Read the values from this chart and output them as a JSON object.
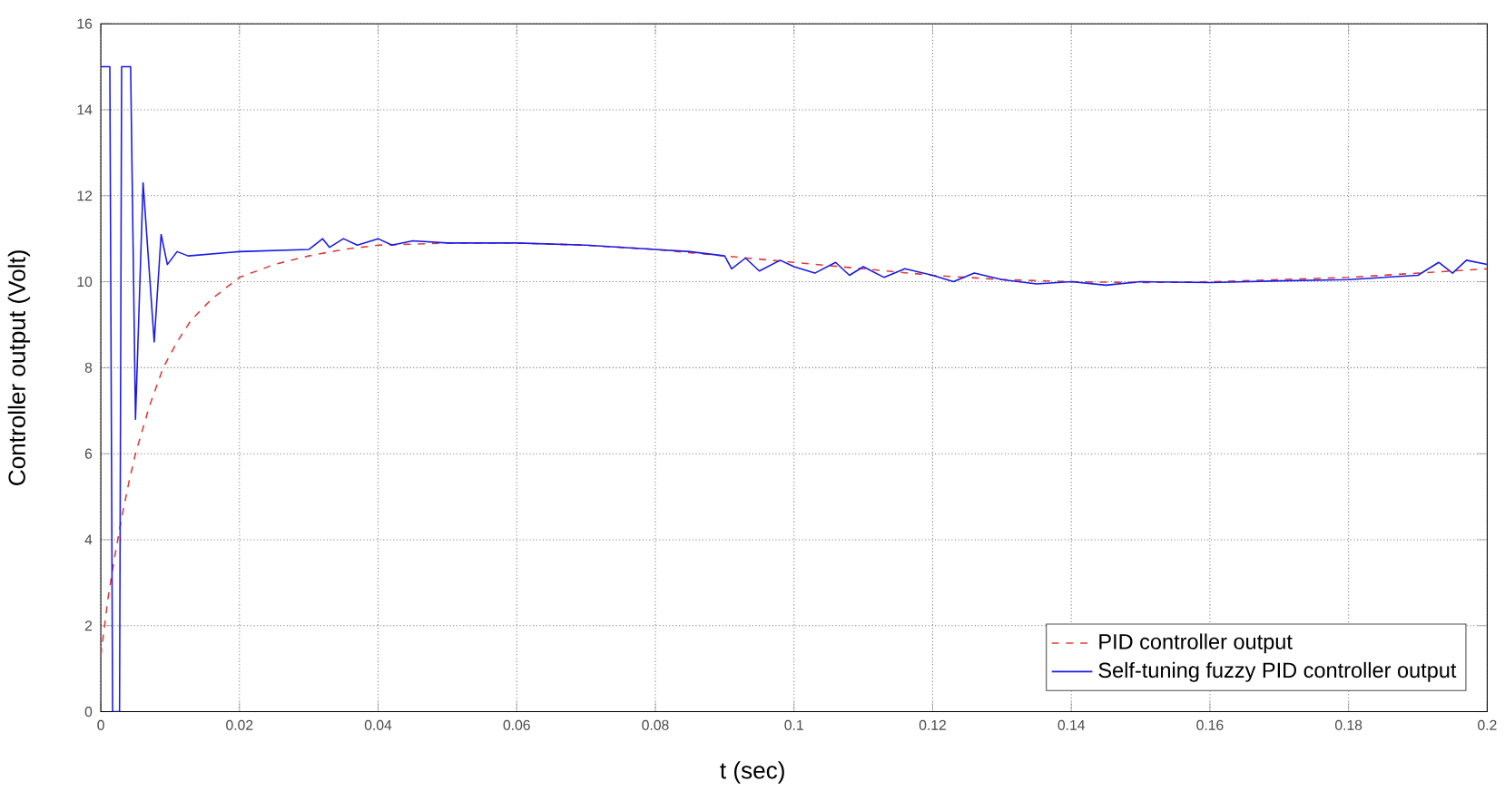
{
  "chart_data": {
    "type": "line",
    "xlabel": "t (sec)",
    "ylabel": "Controller output (Volt)",
    "xlim": [
      0,
      0.2
    ],
    "ylim": [
      0,
      16
    ],
    "xticks": [
      0,
      0.02,
      0.04,
      0.06,
      0.08,
      0.1,
      0.12,
      0.14,
      0.16,
      0.18,
      0.2
    ],
    "yticks": [
      0,
      2,
      4,
      6,
      8,
      10,
      12,
      14,
      16
    ],
    "grid": true,
    "legend": "bottom right",
    "series": [
      {
        "name": "PID controller output",
        "color": "#e03a3a",
        "line_style": "dashed",
        "x": [
          0,
          0.001,
          0.002,
          0.003,
          0.004,
          0.005,
          0.007,
          0.009,
          0.011,
          0.013,
          0.016,
          0.02,
          0.025,
          0.03,
          0.035,
          0.04,
          0.05,
          0.06,
          0.07,
          0.08,
          0.09,
          0.1,
          0.11,
          0.12,
          0.13,
          0.14,
          0.15,
          0.16,
          0.17,
          0.18,
          0.19,
          0.2
        ],
        "values": [
          1.3,
          2.6,
          3.6,
          4.5,
          5.3,
          6.0,
          7.1,
          8.0,
          8.6,
          9.1,
          9.6,
          10.1,
          10.4,
          10.6,
          10.75,
          10.85,
          10.9,
          10.9,
          10.85,
          10.75,
          10.6,
          10.45,
          10.3,
          10.15,
          10.05,
          10.0,
          9.98,
          10.0,
          10.05,
          10.1,
          10.2,
          10.3
        ]
      },
      {
        "name": "Self-tuning fuzzy PID controller output",
        "color": "#1a1ae6",
        "line_style": "solid",
        "x": [
          0,
          0.0013,
          0.0017,
          0.0027,
          0.003,
          0.0043,
          0.005,
          0.0061,
          0.0077,
          0.0087,
          0.0096,
          0.011,
          0.0126,
          0.02,
          0.03,
          0.032,
          0.033,
          0.035,
          0.037,
          0.04,
          0.042,
          0.045,
          0.05,
          0.06,
          0.07,
          0.08,
          0.085,
          0.09,
          0.091,
          0.093,
          0.095,
          0.098,
          0.1,
          0.103,
          0.106,
          0.108,
          0.11,
          0.113,
          0.116,
          0.12,
          0.123,
          0.126,
          0.13,
          0.135,
          0.14,
          0.145,
          0.15,
          0.16,
          0.17,
          0.18,
          0.19,
          0.193,
          0.195,
          0.197,
          0.2
        ],
        "values": [
          15,
          15,
          0,
          0,
          15,
          15,
          6.8,
          12.3,
          8.6,
          11.1,
          10.4,
          10.7,
          10.6,
          10.7,
          10.75,
          11.0,
          10.8,
          11.0,
          10.85,
          11.0,
          10.85,
          10.95,
          10.9,
          10.9,
          10.85,
          10.75,
          10.7,
          10.6,
          10.3,
          10.55,
          10.25,
          10.5,
          10.35,
          10.2,
          10.45,
          10.15,
          10.35,
          10.1,
          10.3,
          10.15,
          10.0,
          10.2,
          10.05,
          9.95,
          10.0,
          9.92,
          10.0,
          9.98,
          10.02,
          10.05,
          10.15,
          10.45,
          10.2,
          10.5,
          10.4
        ]
      }
    ]
  }
}
